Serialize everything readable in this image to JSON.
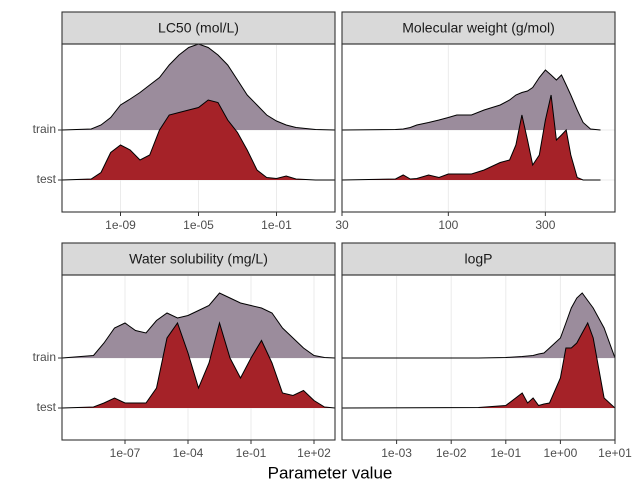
{
  "x_label": "Parameter value",
  "chart_data": [
    {
      "type": "ridgeline",
      "title": "LC50 (mol/L)",
      "xscale": "log",
      "grid": true,
      "xlim": [
        1e-12,
        100
      ],
      "xticks": [
        {
          "value": 1e-09,
          "label": "1e-09"
        },
        {
          "value": 1e-05,
          "label": "1e-05"
        },
        {
          "value": 0.1,
          "label": "1e-01"
        }
      ],
      "categories": [
        "train",
        "test"
      ],
      "x": [
        1e-12,
        3.16e-11,
        1e-10,
        3.16e-10,
        1e-09,
        3.16e-09,
        1e-08,
        3.16e-08,
        1e-07,
        3.16e-07,
        1e-06,
        3.16e-06,
        1e-05,
        3.16e-05,
        0.0001,
        0.000316,
        0.001,
        0.00316,
        0.01,
        0.0316,
        0.1,
        0.316,
        1,
        10,
        100
      ],
      "series": [
        {
          "color": "#9b8c9c",
          "values": [
            0,
            0.02,
            0.1,
            0.25,
            0.5,
            0.62,
            0.75,
            0.9,
            1.05,
            1.3,
            1.5,
            1.65,
            1.72,
            1.65,
            1.5,
            1.3,
            1.0,
            0.7,
            0.5,
            0.3,
            0.18,
            0.1,
            0.05,
            0.01,
            0
          ]
        },
        {
          "color": "#a52228",
          "values": [
            0,
            0.02,
            0.15,
            0.55,
            0.7,
            0.6,
            0.4,
            0.5,
            1.0,
            1.3,
            1.35,
            1.4,
            1.45,
            1.6,
            1.55,
            1.2,
            0.95,
            0.6,
            0.2,
            0.05,
            0.03,
            0.08,
            0.02,
            0,
            0
          ]
        }
      ]
    },
    {
      "type": "ridgeline",
      "title": "Molecular weight (g/mol)",
      "xscale": "log",
      "grid": true,
      "xlim": [
        30,
        660
      ],
      "xticks": [
        30,
        100,
        300
      ],
      "x": [
        30,
        55,
        60,
        65,
        70,
        80,
        90,
        100,
        110,
        130,
        150,
        180,
        200,
        215,
        230,
        245,
        260,
        280,
        300,
        320,
        340,
        360,
        380,
        400,
        430,
        460,
        500,
        560
      ],
      "series": [
        {
          "color": "#9b8c9c",
          "values": [
            0,
            0.01,
            0.02,
            0.05,
            0.1,
            0.15,
            0.2,
            0.25,
            0.3,
            0.3,
            0.4,
            0.5,
            0.6,
            0.7,
            0.75,
            0.78,
            0.85,
            1.05,
            1.2,
            1.1,
            1.0,
            1.1,
            0.9,
            0.7,
            0.4,
            0.15,
            0.02,
            0
          ]
        },
        {
          "color": "#a52228",
          "values": [
            0,
            0.02,
            0.1,
            0.02,
            0.03,
            0.1,
            0.05,
            0.12,
            0.12,
            0.12,
            0.2,
            0.35,
            0.4,
            0.7,
            1.3,
            0.8,
            0.3,
            0.5,
            1.2,
            1.7,
            0.8,
            0.9,
            1.0,
            0.5,
            0.05,
            0,
            0,
            0
          ]
        }
      ]
    },
    {
      "type": "ridgeline",
      "title": "Water solubility (mg/L)",
      "xscale": "log",
      "grid": true,
      "xlim": [
        1e-10,
        1000
      ],
      "xticks": [
        {
          "value": 1e-07,
          "label": "1e-07"
        },
        {
          "value": 0.0001,
          "label": "1e-04"
        },
        {
          "value": 0.1,
          "label": "1e-01"
        },
        {
          "value": 100,
          "label": "1e+02"
        }
      ],
      "categories": [
        "train",
        "test"
      ],
      "x": [
        1e-10,
        3.16e-09,
        1e-08,
        3.16e-08,
        1e-07,
        3.16e-07,
        1e-06,
        3.16e-06,
        1e-05,
        3.16e-05,
        0.0001,
        0.000316,
        0.001,
        0.00316,
        0.01,
        0.0316,
        0.1,
        0.316,
        1,
        3.16,
        10,
        31.6,
        100,
        316,
        1000
      ],
      "series": [
        {
          "color": "#9b8c9c",
          "values": [
            0,
            0.05,
            0.3,
            0.6,
            0.7,
            0.55,
            0.5,
            0.75,
            0.9,
            0.8,
            0.85,
            0.95,
            1.05,
            1.3,
            1.2,
            1.1,
            1.05,
            1.0,
            0.9,
            0.6,
            0.4,
            0.2,
            0.05,
            0.01,
            0
          ]
        },
        {
          "color": "#a52228",
          "values": [
            0,
            0.02,
            0.1,
            0.2,
            0.1,
            0.1,
            0.1,
            0.4,
            1.4,
            1.7,
            1.1,
            0.4,
            0.9,
            1.7,
            1.0,
            0.6,
            1.0,
            1.35,
            0.9,
            0.3,
            0.25,
            0.35,
            0.15,
            0.02,
            0
          ]
        }
      ]
    },
    {
      "type": "ridgeline",
      "title": "logP",
      "xscale": "log",
      "grid": true,
      "xlim": [
        0.0001,
        10
      ],
      "xticks": [
        {
          "value": 0.001,
          "label": "1e-03"
        },
        {
          "value": 0.01,
          "label": "1e-02"
        },
        {
          "value": 0.1,
          "label": "1e-01"
        },
        {
          "value": 1,
          "label": "1e+00"
        },
        {
          "value": 10,
          "label": "1e+01"
        }
      ],
      "x": [
        0.0001,
        0.0316,
        0.1,
        0.2,
        0.251,
        0.316,
        0.398,
        0.501,
        0.631,
        1,
        1.259,
        1.585,
        1.995,
        2.512,
        3.162,
        3.981,
        6.31,
        10
      ],
      "series": [
        {
          "color": "#9b8c9c",
          "values": [
            0,
            0,
            0.01,
            0.03,
            0.04,
            0.05,
            0.08,
            0.1,
            0.2,
            0.4,
            0.7,
            1.0,
            1.2,
            1.3,
            1.15,
            1.0,
            0.6,
            0
          ]
        },
        {
          "color": "#a52228",
          "values": [
            0,
            0.01,
            0.05,
            0.3,
            0.1,
            0.2,
            0.05,
            0.08,
            0.1,
            0.6,
            1.2,
            1.2,
            1.3,
            1.5,
            1.7,
            1.4,
            0.2,
            0
          ]
        }
      ]
    }
  ]
}
